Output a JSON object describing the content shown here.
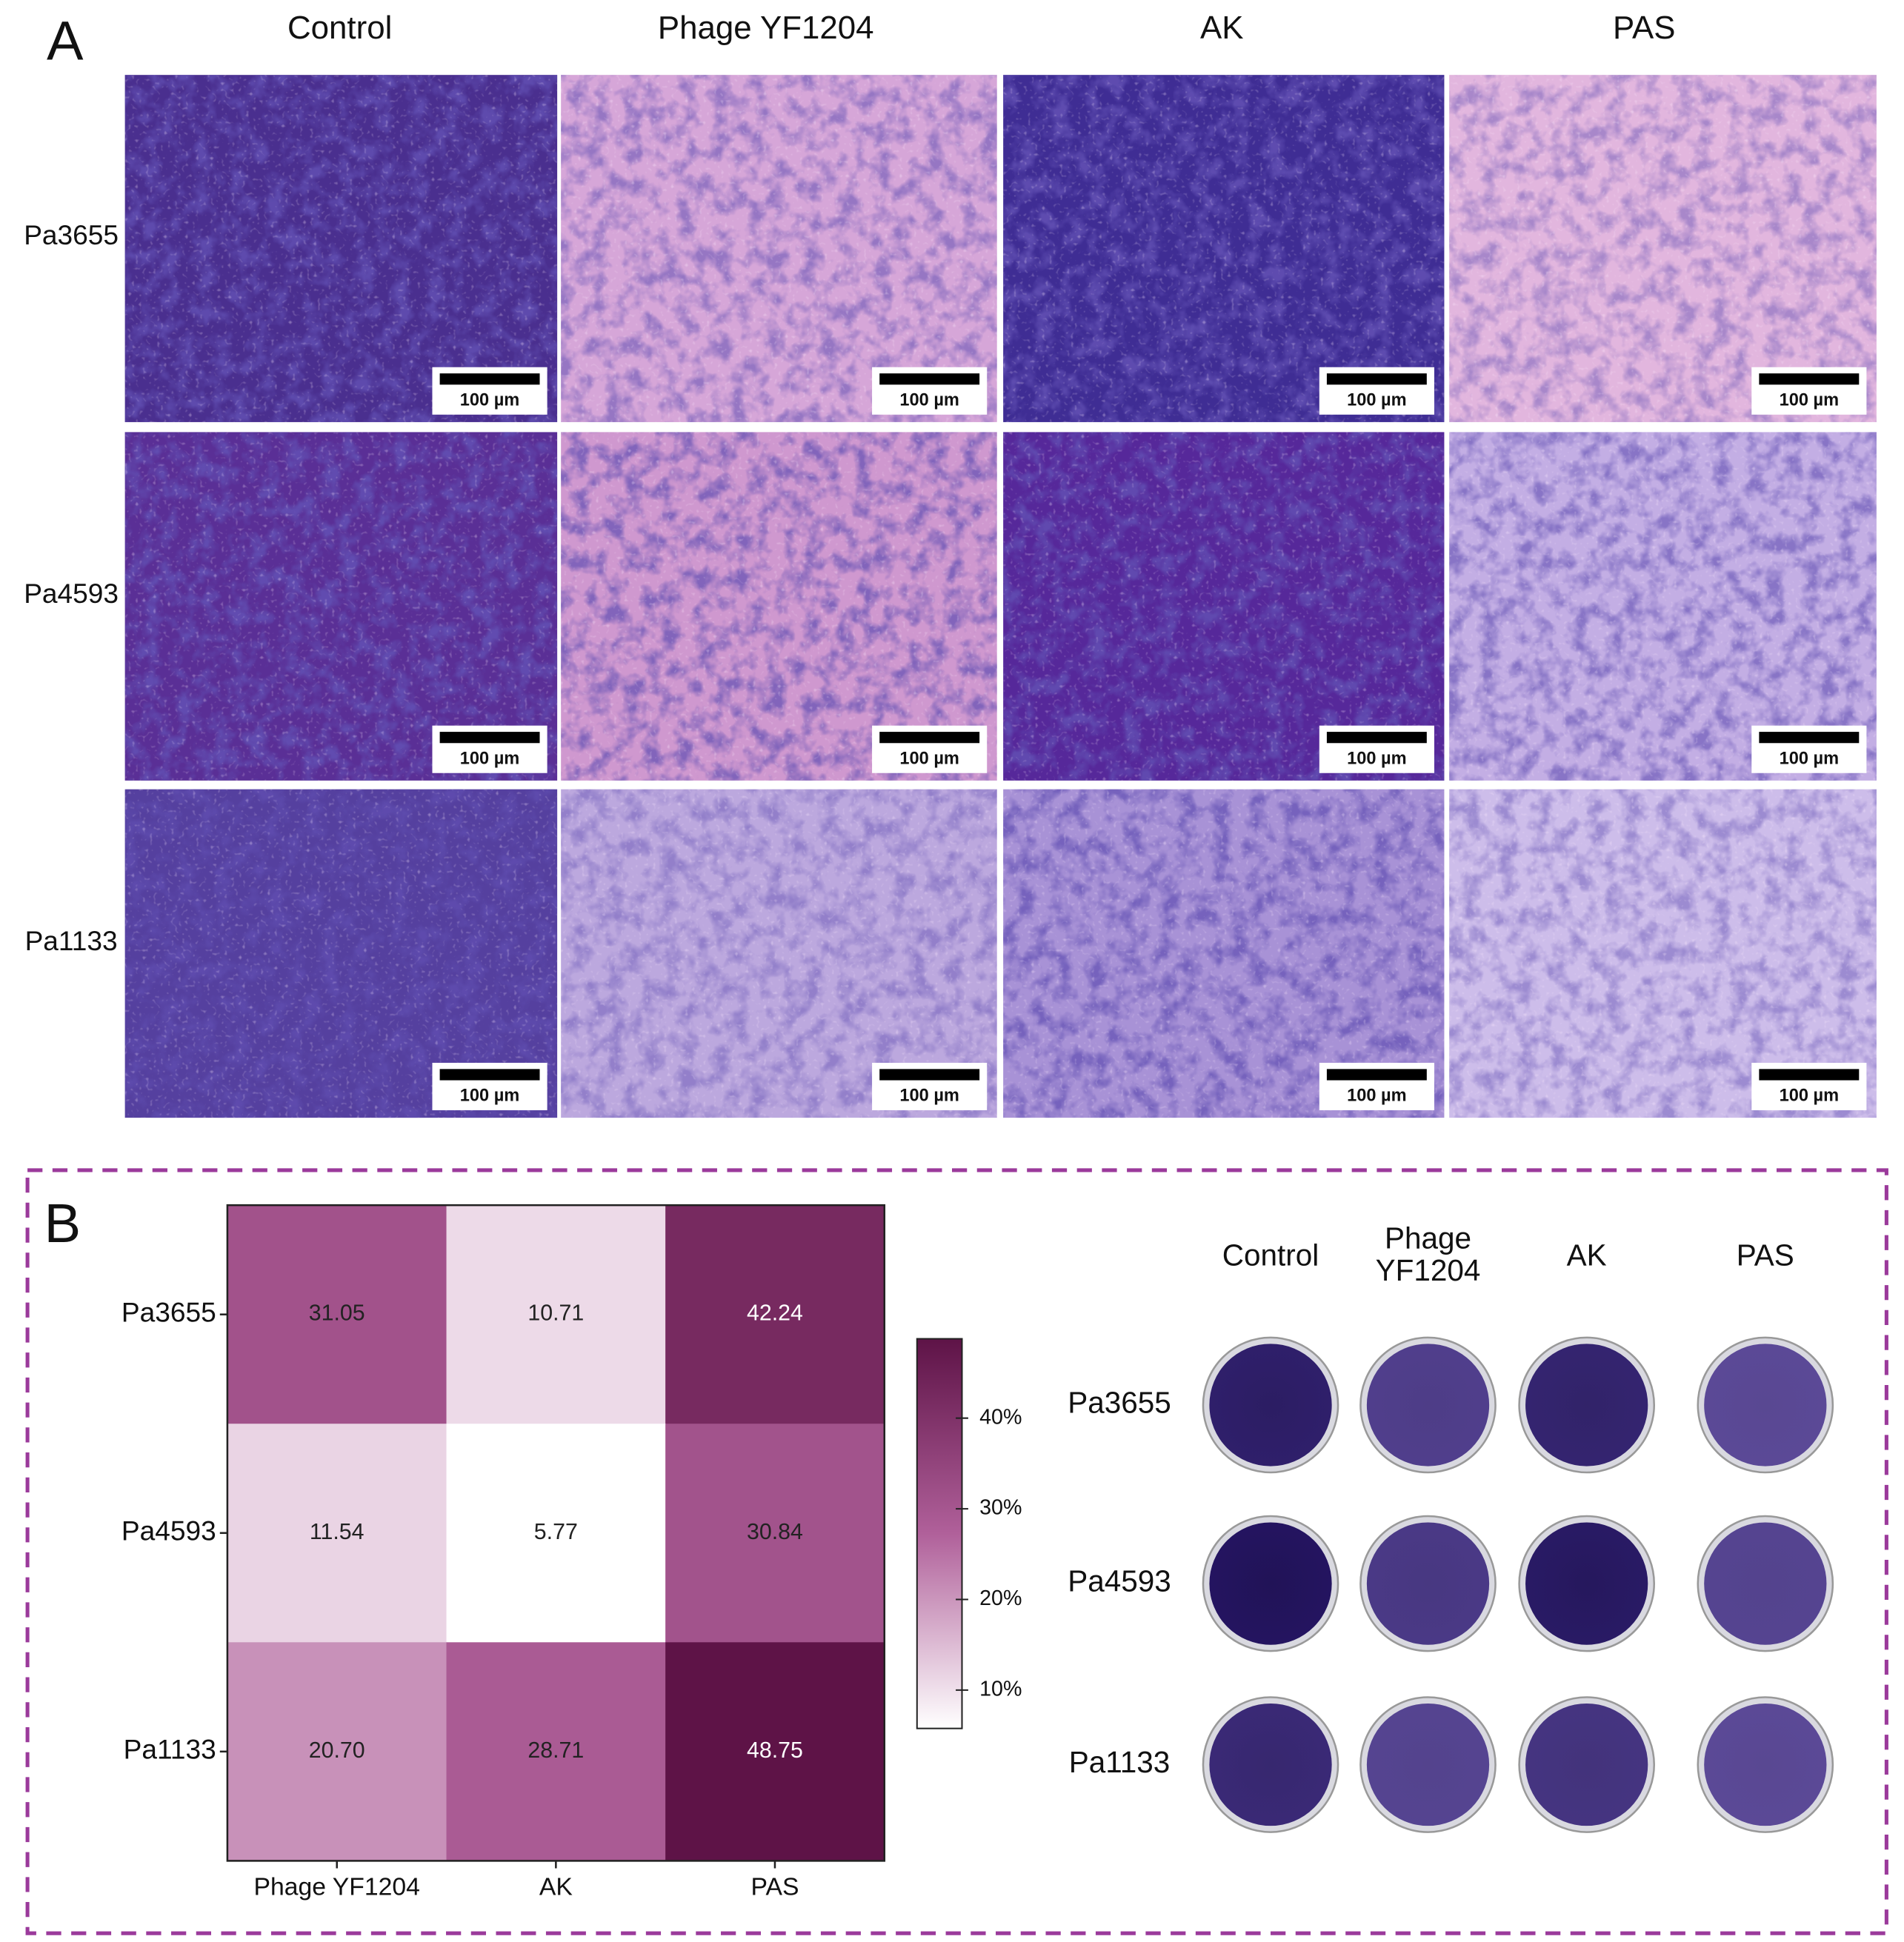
{
  "panel_a": {
    "label": "A",
    "columns": [
      "Control",
      "Phage YF1204",
      "AK",
      "PAS"
    ],
    "rows": [
      "Pa3655",
      "Pa4593",
      "Pa1133"
    ],
    "scale_bar": "100 µm"
  },
  "panel_b": {
    "label": "B",
    "chart_data": {
      "type": "heatmap",
      "x_categories": [
        "Phage YF1204",
        "AK",
        "PAS"
      ],
      "y_categories": [
        "Pa3655",
        "Pa4593",
        "Pa1133"
      ],
      "values": [
        [
          31.05,
          10.71,
          42.24
        ],
        [
          11.54,
          5.77,
          30.84
        ],
        [
          20.7,
          28.71,
          48.75
        ]
      ],
      "value_labels": [
        [
          "31.05",
          "10.71",
          "42.24"
        ],
        [
          "11.54",
          "5.77",
          "30.84"
        ],
        [
          "20.70",
          "28.71",
          "48.75"
        ]
      ],
      "clim": [
        5.77,
        48.75
      ],
      "cticks": [
        {
          "value": 10,
          "label": "10%"
        },
        {
          "value": 20,
          "label": "20%"
        },
        {
          "value": 30,
          "label": "30%"
        },
        {
          "value": 40,
          "label": "40%"
        }
      ],
      "colors": [
        "#ffffff",
        "#b0609a",
        "#5e1347"
      ]
    },
    "plates": {
      "columns": [
        "Control",
        [
          "Phage",
          "YF1204"
        ],
        "AK",
        "PAS"
      ],
      "rows": [
        "Pa3655",
        "Pa4593",
        "Pa1133"
      ]
    }
  }
}
